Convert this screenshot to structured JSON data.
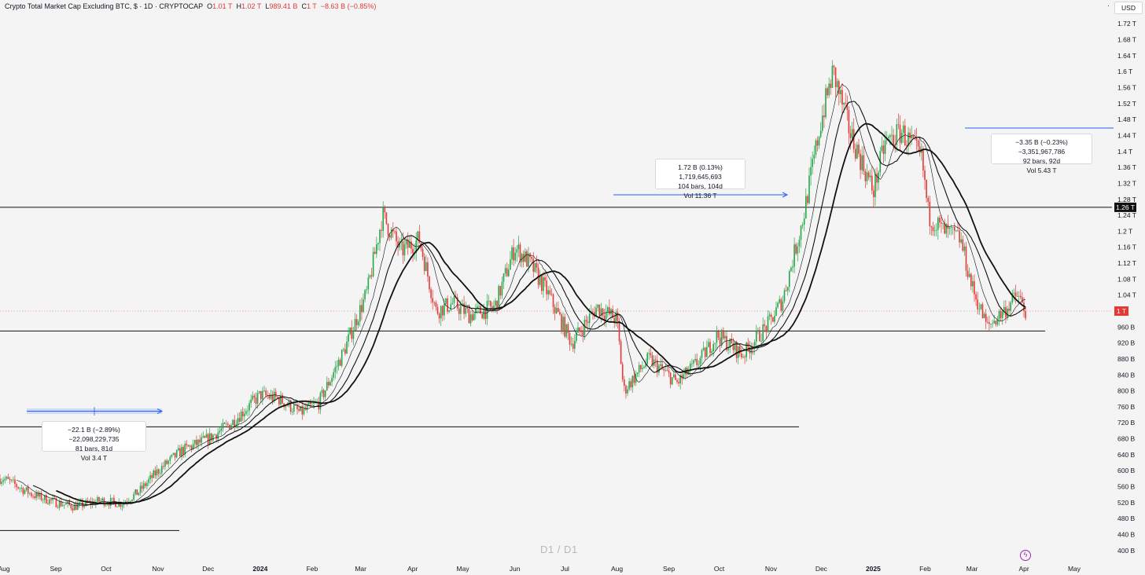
{
  "legend": {
    "title": "Crypto Total Market Cap Excluding BTC, $ · 1D · CRYPTOCAP",
    "o_label": "O",
    "o_value": "1.01 T",
    "h_label": "H",
    "h_value": "1.02 T",
    "l_label": "L",
    "l_value": "989.41 B",
    "c_label": "C",
    "c_value": "1 T",
    "change": "−8.63 B (−0.85%)"
  },
  "currency": "USD",
  "watermark": "D1 / D1",
  "price_axis": {
    "ticks": [
      "1.72 T",
      "1.68 T",
      "1.64 T",
      "1.6 T",
      "1.56 T",
      "1.52 T",
      "1.48 T",
      "1.44 T",
      "1.4 T",
      "1.36 T",
      "1.32 T",
      "1.28 T",
      "1.24 T",
      "1.2 T",
      "1.16 T",
      "1.12 T",
      "1.08 T",
      "1.04 T",
      "960 B",
      "920 B",
      "880 B",
      "840 B",
      "800 B",
      "760 B",
      "720 B",
      "680 B",
      "640 B",
      "600 B",
      "560 B",
      "520 B",
      "480 B",
      "440 B",
      "400 B"
    ],
    "marker_black": "1.26 T",
    "marker_red": "1 T"
  },
  "time_axis": {
    "labels": [
      "Aug",
      "Sep",
      "Oct",
      "Nov",
      "Dec",
      "2024",
      "Feb",
      "Mar",
      "Apr",
      "May",
      "Jun",
      "Jul",
      "Aug",
      "Sep",
      "Oct",
      "Nov",
      "Dec",
      "2025",
      "Feb",
      "Mar",
      "Apr",
      "May"
    ]
  },
  "annotations": [
    {
      "line1": "−22.1 B (−2.89%) −22,098,229,735",
      "line2": "81 bars, 81d",
      "line3": "Vol 3.4 T"
    },
    {
      "line1": "1.72 B (0.13%) 1,719,645,693",
      "line2": "104 bars, 104d",
      "line3": "Vol 11.36 T"
    },
    {
      "line1": "−3.35 B (−0.23%) −3,351,967,786",
      "line2": "92 bars, 92d",
      "line3": "Vol 5.43 T"
    }
  ],
  "colors": {
    "up": "#26a64a",
    "down": "#e53935",
    "ma": "#111111",
    "measure": "#2962ff"
  },
  "chart_data": {
    "type": "candlestick",
    "title": "Crypto Total Market Cap Excluding BTC, $ · 1D · CRYPTOCAP",
    "y_unit": "USD",
    "ylim": [
      400,
      1760
    ],
    "x_range": [
      "2023-08",
      "2025-05"
    ],
    "last": {
      "open": 1010,
      "high": 1020,
      "low": 989.41,
      "close": 1000
    },
    "horizontal_levels": [
      1260,
      950,
      710,
      450
    ],
    "series": [
      {
        "name": "price",
        "points": [
          [
            "2023-08-01",
            580
          ],
          [
            "2023-08-18",
            540
          ],
          [
            "2023-09-01",
            520
          ],
          [
            "2023-09-12",
            510
          ],
          [
            "2023-09-28",
            525
          ],
          [
            "2023-10-10",
            518
          ],
          [
            "2023-10-20",
            545
          ],
          [
            "2023-11-01",
            600
          ],
          [
            "2023-11-15",
            650
          ],
          [
            "2023-12-01",
            680
          ],
          [
            "2023-12-15",
            720
          ],
          [
            "2024-01-01",
            790
          ],
          [
            "2024-01-12",
            780
          ],
          [
            "2024-01-25",
            745
          ],
          [
            "2024-02-05",
            770
          ],
          [
            "2024-02-20",
            900
          ],
          [
            "2024-03-05",
            1050
          ],
          [
            "2024-03-14",
            1240
          ],
          [
            "2024-03-25",
            1150
          ],
          [
            "2024-04-05",
            1180
          ],
          [
            "2024-04-15",
            1000
          ],
          [
            "2024-04-25",
            1020
          ],
          [
            "2024-05-05",
            990
          ],
          [
            "2024-05-20",
            1010
          ],
          [
            "2024-06-01",
            1160
          ],
          [
            "2024-06-10",
            1120
          ],
          [
            "2024-06-20",
            1050
          ],
          [
            "2024-07-05",
            920
          ],
          [
            "2024-07-20",
            1010
          ],
          [
            "2024-08-01",
            980
          ],
          [
            "2024-08-05",
            800
          ],
          [
            "2024-08-20",
            880
          ],
          [
            "2024-09-06",
            820
          ],
          [
            "2024-09-20",
            880
          ],
          [
            "2024-09-30",
            940
          ],
          [
            "2024-10-15",
            890
          ],
          [
            "2024-10-31",
            970
          ],
          [
            "2024-11-08",
            1030
          ],
          [
            "2024-11-20",
            1230
          ],
          [
            "2024-12-01",
            1480
          ],
          [
            "2024-12-08",
            1600
          ],
          [
            "2024-12-18",
            1450
          ],
          [
            "2025-01-01",
            1300
          ],
          [
            "2025-01-08",
            1420
          ],
          [
            "2025-01-18",
            1450
          ],
          [
            "2025-01-30",
            1380
          ],
          [
            "2025-02-03",
            1240
          ],
          [
            "2025-02-12",
            1200
          ],
          [
            "2025-02-22",
            1180
          ],
          [
            "2025-03-01",
            1060
          ],
          [
            "2025-03-10",
            960
          ],
          [
            "2025-03-20",
            1000
          ],
          [
            "2025-03-28",
            1040
          ],
          [
            "2025-04-02",
            1000
          ]
        ]
      }
    ]
  }
}
